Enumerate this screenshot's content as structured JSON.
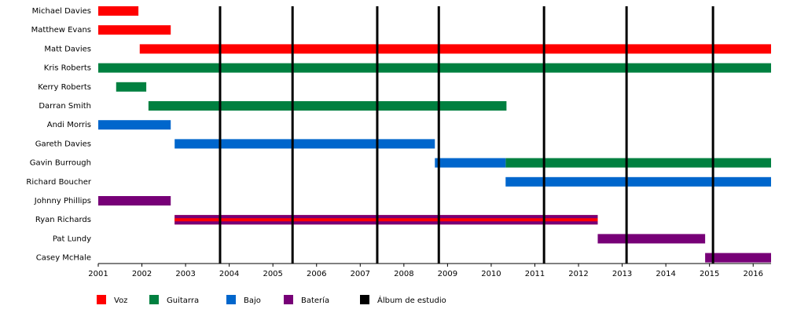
{
  "chart_data": {
    "type": "timeline",
    "categories": [
      "Michael Davies",
      "Matthew Evans",
      "Matt Davies",
      "Kris Roberts",
      "Kerry Roberts",
      "Darran Smith",
      "Andi Morris",
      "Gareth Davies",
      "Gavin Burrough",
      "Richard Boucher",
      "Johnny Phillips",
      "Ryan Richards",
      "Pat Lundy",
      "Casey McHale"
    ],
    "series": [
      {
        "name": "Voz",
        "color": "#ff0000",
        "bars": [
          {
            "member": "Michael Davies",
            "start": 2001,
            "end": 2001.92
          },
          {
            "member": "Matthew Evans",
            "start": 2001,
            "end": 2002.66
          },
          {
            "member": "Matt Davies",
            "start": 2001.95,
            "end": 2016.41
          },
          {
            "member": "Ryan Richards",
            "start": 2002.75,
            "end": 2012.44
          }
        ]
      },
      {
        "name": "Guitarra",
        "color": "#008040",
        "bars": [
          {
            "member": "Kris Roberts",
            "start": 2001,
            "end": 2016.41
          },
          {
            "member": "Kerry Roberts",
            "start": 2001.41,
            "end": 2002.1
          },
          {
            "member": "Darran Smith",
            "start": 2002.15,
            "end": 2010.35
          },
          {
            "member": "Gavin Burrough",
            "start": 2010.33,
            "end": 2016.41
          }
        ]
      },
      {
        "name": "Bajo",
        "color": "#0066cc",
        "bars": [
          {
            "member": "Andi Morris",
            "start": 2001,
            "end": 2002.66
          },
          {
            "member": "Gareth Davies",
            "start": 2002.75,
            "end": 2008.71
          },
          {
            "member": "Gavin Burrough",
            "start": 2008.71,
            "end": 2010.33
          },
          {
            "member": "Richard Boucher",
            "start": 2010.33,
            "end": 2016.41
          }
        ]
      },
      {
        "name": "Batería",
        "color": "#770077",
        "bars": [
          {
            "member": "Johnny Phillips",
            "start": 2001,
            "end": 2002.66
          },
          {
            "member": "Ryan Richards",
            "start": 2002.75,
            "end": 2012.44
          },
          {
            "member": "Pat Lundy",
            "start": 2012.44,
            "end": 2014.9
          },
          {
            "member": "Casey McHale",
            "start": 2014.9,
            "end": 2016.41
          }
        ]
      }
    ],
    "albums": {
      "name": "Álbum de estudio",
      "color": "#000000",
      "values": [
        2003.79,
        2005.45,
        2007.39,
        2008.8,
        2011.21,
        2013.1,
        2015.08
      ]
    },
    "xlim": [
      2001,
      2016.41
    ],
    "xticks": [
      2001,
      2002,
      2003,
      2004,
      2005,
      2006,
      2007,
      2008,
      2009,
      2010,
      2011,
      2012,
      2013,
      2014,
      2015,
      2016
    ]
  }
}
